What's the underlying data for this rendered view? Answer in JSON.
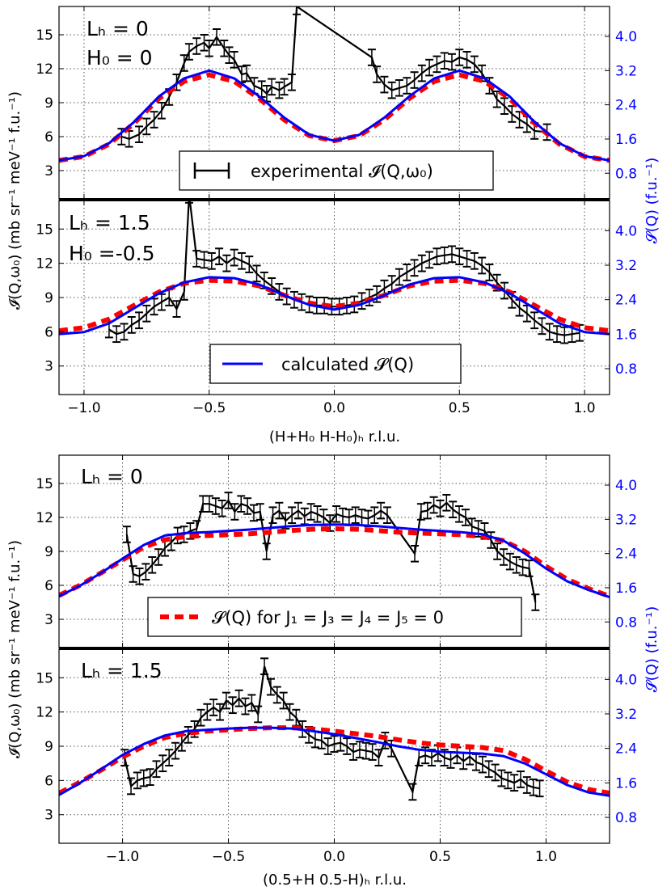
{
  "figure": {
    "shared_ylabel_left": "𝓘(Q,ω₀) (mb sr⁻¹ meV⁻¹ f.u.⁻¹)",
    "shared_ylabel_right": "𝓢(Q) (f.u.⁻¹)",
    "xlabel_top": "(H+H₀ H-H₀)ₕ r.l.u.",
    "xlabel_bottom": "(0.5+H 0.5-H)ₕ r.l.u.",
    "legend_experimental": "experimental 𝓘(Q,ω₀)",
    "legend_calculated": "calculated 𝓢(Q)",
    "legend_restricted": "𝓢(Q) for J₁ = J₃ = J₄ = J₅ = 0"
  },
  "colors": {
    "experimental": "#000000",
    "calculated": "#0000ff",
    "restricted": "#ff0000",
    "grid": "#555555"
  },
  "chart_data": [
    {
      "type": "line",
      "panel_label_1": "Lₕ = 0",
      "panel_label_2": "H₀ = 0",
      "xlim": [
        -1.1,
        1.1
      ],
      "ylim_left": [
        0.5,
        17.5
      ],
      "ylim_right": [
        0.2,
        4.7
      ],
      "xticks": [
        "−1.0",
        "−0.5",
        "0.0",
        "0.5",
        "1.0"
      ],
      "yticks_left": [
        3,
        6,
        9,
        12,
        15
      ],
      "yticks_right": [
        "0.8",
        "1.6",
        "2.4",
        "3.2",
        "4.0"
      ],
      "series": [
        {
          "name": "experimental 𝓘(Q,ω₀)",
          "x": [
            -0.85,
            -0.82,
            -0.78,
            -0.75,
            -0.72,
            -0.69,
            -0.66,
            -0.63,
            -0.6,
            -0.58,
            -0.55,
            -0.52,
            -0.5,
            -0.47,
            -0.44,
            -0.42,
            -0.4,
            -0.37,
            -0.35,
            -0.32,
            -0.29,
            -0.27,
            -0.25,
            -0.22,
            -0.2,
            -0.17,
            -0.15,
            0.15,
            0.17,
            0.2,
            0.23,
            0.26,
            0.29,
            0.32,
            0.35,
            0.38,
            0.41,
            0.44,
            0.47,
            0.5,
            0.53,
            0.56,
            0.59,
            0.62,
            0.65,
            0.68,
            0.71,
            0.74,
            0.77,
            0.8,
            0.85
          ],
          "y": [
            6,
            5.8,
            6.2,
            6.9,
            7.5,
            8.3,
            9.5,
            10.8,
            12.5,
            13.5,
            14,
            14.3,
            13.8,
            14.8,
            13.8,
            13.2,
            12.8,
            11.5,
            11.6,
            10.5,
            10.2,
            9.8,
            10.4,
            10.1,
            10.4,
            10.8,
            17.5,
            13,
            11.5,
            10.6,
            10.1,
            10.3,
            10.5,
            11,
            11.6,
            12.1,
            12.4,
            12.7,
            12.6,
            13,
            12.8,
            12.4,
            11.6,
            10.5,
            9.3,
            8.7,
            8,
            7.5,
            7.1,
            6.5,
            6.4
          ],
          "err": 0.7
        },
        {
          "name": "calculated 𝓢(Q)",
          "x": [
            -1.1,
            -1.0,
            -0.9,
            -0.8,
            -0.7,
            -0.6,
            -0.5,
            -0.4,
            -0.3,
            -0.2,
            -0.1,
            0.0,
            0.1,
            0.2,
            0.3,
            0.4,
            0.5,
            0.6,
            0.7,
            0.8,
            0.9,
            1.0,
            1.1
          ],
          "y": [
            1.1,
            1.2,
            1.5,
            2.0,
            2.6,
            3.02,
            3.2,
            3.02,
            2.6,
            2.1,
            1.7,
            1.56,
            1.7,
            2.1,
            2.6,
            3.02,
            3.2,
            3.02,
            2.6,
            2.0,
            1.5,
            1.2,
            1.1
          ]
        },
        {
          "name": "𝓢(Q) for J₁ = J₃ = J₄ = J₅ = 0",
          "x": [
            -1.1,
            -1.0,
            -0.9,
            -0.8,
            -0.7,
            -0.6,
            -0.5,
            -0.4,
            -0.3,
            -0.2,
            -0.1,
            0.0,
            0.1,
            0.2,
            0.3,
            0.4,
            0.5,
            0.6,
            0.7,
            0.8,
            0.9,
            1.0,
            1.1
          ],
          "y": [
            1.1,
            1.19,
            1.48,
            1.97,
            2.55,
            2.95,
            3.1,
            2.95,
            2.55,
            2.05,
            1.68,
            1.56,
            1.68,
            2.05,
            2.55,
            2.95,
            3.1,
            2.95,
            2.55,
            1.97,
            1.48,
            1.19,
            1.1
          ]
        }
      ]
    },
    {
      "type": "line",
      "panel_label_1": "Lₕ = 1.5",
      "panel_label_2": "H₀ =-0.5",
      "xlim": [
        -1.1,
        1.1
      ],
      "ylim_left": [
        0.5,
        17.5
      ],
      "ylim_right": [
        0.2,
        4.7
      ],
      "xticks": [
        "−1.0",
        "−0.5",
        "0.0",
        "0.5",
        "1.0"
      ],
      "yticks_left": [
        3,
        6,
        9,
        12,
        15
      ],
      "yticks_right": [
        "0.8",
        "1.6",
        "2.4",
        "3.2",
        "4.0"
      ],
      "series": [
        {
          "name": "experimental 𝓘(Q,ω₀)",
          "x": [
            -0.9,
            -0.87,
            -0.84,
            -0.81,
            -0.78,
            -0.75,
            -0.72,
            -0.69,
            -0.66,
            -0.63,
            -0.6,
            -0.58,
            -0.55,
            -0.52,
            -0.49,
            -0.46,
            -0.43,
            -0.4,
            -0.37,
            -0.34,
            -0.31,
            -0.28,
            -0.25,
            -0.22,
            -0.19,
            -0.16,
            -0.13,
            -0.1,
            -0.07,
            -0.04,
            -0.01,
            0.02,
            0.05,
            0.08,
            0.11,
            0.14,
            0.17,
            0.2,
            0.23,
            0.26,
            0.29,
            0.32,
            0.35,
            0.38,
            0.41,
            0.44,
            0.47,
            0.5,
            0.53,
            0.56,
            0.59,
            0.62,
            0.65,
            0.68,
            0.71,
            0.74,
            0.77,
            0.8,
            0.83,
            0.86,
            0.89,
            0.92,
            0.95,
            0.98
          ],
          "y": [
            6.2,
            5.8,
            6,
            6.6,
            7,
            7.6,
            8.2,
            8.6,
            9,
            8,
            9.5,
            18,
            12.4,
            12.3,
            12.2,
            12.6,
            12,
            12.5,
            12.2,
            11.9,
            11.1,
            10.5,
            10,
            9.5,
            9.1,
            8.8,
            8.6,
            8.4,
            8.3,
            8.3,
            8.2,
            8.2,
            8.3,
            8.4,
            8.7,
            9,
            9.3,
            9.8,
            10.2,
            10.8,
            11.2,
            11.6,
            12,
            12.3,
            12.6,
            12.7,
            12.8,
            12.6,
            12.4,
            12.2,
            11.8,
            11.2,
            10.3,
            9.6,
            8.8,
            8.1,
            7.6,
            7,
            6.5,
            6,
            5.8,
            5.7,
            5.8,
            5.9
          ],
          "err": 0.7
        },
        {
          "name": "calculated 𝓢(Q)",
          "x": [
            -1.1,
            -1.0,
            -0.9,
            -0.8,
            -0.7,
            -0.6,
            -0.5,
            -0.4,
            -0.3,
            -0.2,
            -0.1,
            0.0,
            0.1,
            0.2,
            0.3,
            0.4,
            0.5,
            0.6,
            0.7,
            0.8,
            0.9,
            1.0,
            1.1
          ],
          "y": [
            1.6,
            1.65,
            1.85,
            2.2,
            2.55,
            2.8,
            2.92,
            2.9,
            2.75,
            2.5,
            2.28,
            2.17,
            2.28,
            2.5,
            2.75,
            2.9,
            2.92,
            2.8,
            2.55,
            2.2,
            1.85,
            1.65,
            1.6
          ]
        },
        {
          "name": "𝓢(Q) for J₁ = J₃ = J₄ = J₅ = 0",
          "x": [
            -1.1,
            -1.0,
            -0.9,
            -0.8,
            -0.7,
            -0.6,
            -0.5,
            -0.4,
            -0.3,
            -0.2,
            -0.1,
            0.0,
            0.1,
            0.2,
            0.3,
            0.4,
            0.5,
            0.6,
            0.7,
            0.8,
            0.9,
            1.0,
            1.1
          ],
          "y": [
            1.68,
            1.75,
            1.95,
            2.27,
            2.58,
            2.78,
            2.85,
            2.83,
            2.72,
            2.5,
            2.32,
            2.24,
            2.32,
            2.5,
            2.72,
            2.83,
            2.85,
            2.78,
            2.58,
            2.27,
            1.95,
            1.75,
            1.68
          ]
        }
      ]
    },
    {
      "type": "line",
      "panel_label_1": "Lₕ = 0",
      "xlim": [
        -1.3,
        1.3
      ],
      "ylim_left": [
        0.5,
        17.5
      ],
      "ylim_right": [
        0.2,
        4.7
      ],
      "xticks": [
        "−1.0",
        "−0.5",
        "0.0",
        "0.5",
        "1.0"
      ],
      "yticks_left": [
        3,
        6,
        9,
        12,
        15
      ],
      "yticks_right": [
        "0.8",
        "1.6",
        "2.4",
        "3.2",
        "4.0"
      ],
      "series": [
        {
          "name": "experimental 𝓘(Q,ω₀)",
          "x": [
            -0.98,
            -0.95,
            -0.92,
            -0.89,
            -0.86,
            -0.83,
            -0.8,
            -0.77,
            -0.74,
            -0.71,
            -0.68,
            -0.65,
            -0.62,
            -0.59,
            -0.56,
            -0.53,
            -0.5,
            -0.47,
            -0.44,
            -0.41,
            -0.38,
            -0.35,
            -0.32,
            -0.29,
            -0.26,
            -0.23,
            -0.2,
            -0.17,
            -0.14,
            -0.11,
            -0.08,
            -0.05,
            -0.02,
            0.01,
            0.04,
            0.07,
            0.1,
            0.13,
            0.16,
            0.19,
            0.22,
            0.25,
            0.38,
            0.41,
            0.44,
            0.47,
            0.5,
            0.53,
            0.56,
            0.59,
            0.62,
            0.65,
            0.68,
            0.71,
            0.74,
            0.77,
            0.8,
            0.83,
            0.86,
            0.89,
            0.92,
            0.95
          ],
          "y": [
            10.5,
            7,
            6.8,
            7.2,
            7.8,
            8.5,
            9.3,
            9.8,
            10.4,
            10.5,
            10.8,
            11,
            13.2,
            13.2,
            13,
            12.8,
            13.5,
            12.5,
            13.2,
            13,
            12.4,
            12.5,
            9,
            12.2,
            12.6,
            11.7,
            12.2,
            12.6,
            12.1,
            12.5,
            12.3,
            12,
            11.5,
            12.3,
            12.1,
            12,
            12.2,
            12,
            11.9,
            12.2,
            12.6,
            12.2,
            8.8,
            12.5,
            12.6,
            13.1,
            12.8,
            13.3,
            12.7,
            12.3,
            12,
            11.2,
            11,
            10.8,
            10,
            9,
            8.5,
            8.1,
            7.8,
            7.6,
            7.5,
            4.5
          ],
          "err": 0.7
        },
        {
          "name": "calculated 𝓢(Q)",
          "x": [
            -1.3,
            -1.2,
            -1.1,
            -1.0,
            -0.9,
            -0.8,
            -0.7,
            -0.6,
            -0.5,
            -0.4,
            -0.3,
            -0.2,
            -0.1,
            0.0,
            0.1,
            0.2,
            0.3,
            0.4,
            0.5,
            0.6,
            0.7,
            0.8,
            0.9,
            1.0,
            1.1,
            1.2,
            1.3
          ],
          "y": [
            1.4,
            1.65,
            1.95,
            2.28,
            2.6,
            2.82,
            2.88,
            2.9,
            2.93,
            2.96,
            3.0,
            3.04,
            3.07,
            3.08,
            3.07,
            3.04,
            3.0,
            2.96,
            2.93,
            2.9,
            2.85,
            2.7,
            2.4,
            2.05,
            1.75,
            1.55,
            1.38
          ]
        },
        {
          "name": "𝓢(Q) for J₁ = J₃ = J₄ = J₅ = 0",
          "x": [
            -1.3,
            -1.2,
            -1.1,
            -1.0,
            -0.9,
            -0.8,
            -0.7,
            -0.6,
            -0.5,
            -0.4,
            -0.3,
            -0.2,
            -0.1,
            0.0,
            0.1,
            0.2,
            0.3,
            0.4,
            0.5,
            0.6,
            0.7,
            0.8,
            0.9,
            1.0,
            1.1,
            1.2,
            1.3
          ],
          "y": [
            1.42,
            1.66,
            1.95,
            2.25,
            2.55,
            2.72,
            2.8,
            2.82,
            2.84,
            2.86,
            2.9,
            2.94,
            2.97,
            2.98,
            2.97,
            2.94,
            2.9,
            2.88,
            2.86,
            2.84,
            2.8,
            2.7,
            2.45,
            2.1,
            1.8,
            1.58,
            1.4
          ]
        }
      ]
    },
    {
      "type": "line",
      "panel_label_1": "Lₕ = 1.5",
      "xlim": [
        -1.3,
        1.3
      ],
      "ylim_left": [
        0.5,
        17.5
      ],
      "ylim_right": [
        0.2,
        4.7
      ],
      "xticks": [
        "−1.0",
        "−0.5",
        "0.0",
        "0.5",
        "1.0"
      ],
      "yticks_left": [
        3,
        6,
        9,
        12,
        15
      ],
      "yticks_right": [
        "0.8",
        "1.6",
        "2.4",
        "3.2",
        "4.0"
      ],
      "series": [
        {
          "name": "experimental 𝓘(Q,ω₀)",
          "x": [
            -0.99,
            -0.96,
            -0.93,
            -0.9,
            -0.87,
            -0.84,
            -0.81,
            -0.78,
            -0.75,
            -0.72,
            -0.69,
            -0.66,
            -0.63,
            -0.6,
            -0.57,
            -0.54,
            -0.51,
            -0.48,
            -0.45,
            -0.42,
            -0.39,
            -0.36,
            -0.33,
            -0.3,
            -0.27,
            -0.24,
            -0.21,
            -0.18,
            -0.15,
            -0.12,
            -0.09,
            -0.06,
            -0.03,
            0.0,
            0.03,
            0.06,
            0.09,
            0.12,
            0.15,
            0.18,
            0.21,
            0.24,
            0.27,
            0.37,
            0.4,
            0.43,
            0.46,
            0.49,
            0.52,
            0.55,
            0.58,
            0.61,
            0.64,
            0.67,
            0.7,
            0.73,
            0.76,
            0.79,
            0.82,
            0.85,
            0.88,
            0.91,
            0.94,
            0.97
          ],
          "y": [
            8,
            5.5,
            6,
            6.2,
            6.3,
            7,
            7.5,
            8,
            8.6,
            9.3,
            10,
            10.5,
            11.5,
            12,
            12.4,
            12,
            13,
            12.6,
            13.2,
            12.5,
            12.8,
            11.8,
            16,
            14.2,
            13.5,
            13,
            12,
            11.5,
            10.5,
            10,
            9.6,
            9.5,
            9,
            9.2,
            9.3,
            9,
            8.5,
            8.7,
            8.6,
            8.5,
            8,
            9.5,
            8.8,
            5,
            8,
            8.2,
            8,
            8.4,
            8,
            7.8,
            8.2,
            7.7,
            8.1,
            7.6,
            7.4,
            7,
            6.7,
            6.2,
            6,
            5.8,
            6.1,
            5.6,
            5.4,
            5.3
          ],
          "err": 0.7
        },
        {
          "name": "calculated 𝓢(Q)",
          "x": [
            -1.3,
            -1.2,
            -1.1,
            -1.0,
            -0.9,
            -0.8,
            -0.7,
            -0.6,
            -0.5,
            -0.4,
            -0.3,
            -0.2,
            -0.1,
            0.0,
            0.1,
            0.2,
            0.3,
            0.4,
            0.5,
            0.6,
            0.7,
            0.8,
            0.9,
            1.0,
            1.1,
            1.2,
            1.3
          ],
          "y": [
            1.32,
            1.6,
            1.92,
            2.25,
            2.5,
            2.7,
            2.8,
            2.83,
            2.86,
            2.88,
            2.88,
            2.86,
            2.8,
            2.73,
            2.64,
            2.55,
            2.45,
            2.37,
            2.32,
            2.3,
            2.28,
            2.22,
            2.05,
            1.8,
            1.55,
            1.38,
            1.3
          ]
        },
        {
          "name": "𝓢(Q) for J₁ = J₃ = J₄ = J₅ = 0",
          "x": [
            -1.3,
            -1.2,
            -1.1,
            -1.0,
            -0.9,
            -0.8,
            -0.7,
            -0.6,
            -0.5,
            -0.4,
            -0.3,
            -0.2,
            -0.1,
            0.0,
            0.1,
            0.2,
            0.3,
            0.4,
            0.5,
            0.6,
            0.7,
            0.8,
            0.9,
            1.0,
            1.1,
            1.2,
            1.3
          ],
          "y": [
            1.36,
            1.62,
            1.9,
            2.2,
            2.45,
            2.65,
            2.75,
            2.8,
            2.83,
            2.86,
            2.88,
            2.88,
            2.85,
            2.8,
            2.74,
            2.68,
            2.6,
            2.53,
            2.48,
            2.45,
            2.42,
            2.35,
            2.15,
            1.88,
            1.62,
            1.45,
            1.36
          ]
        }
      ]
    }
  ]
}
